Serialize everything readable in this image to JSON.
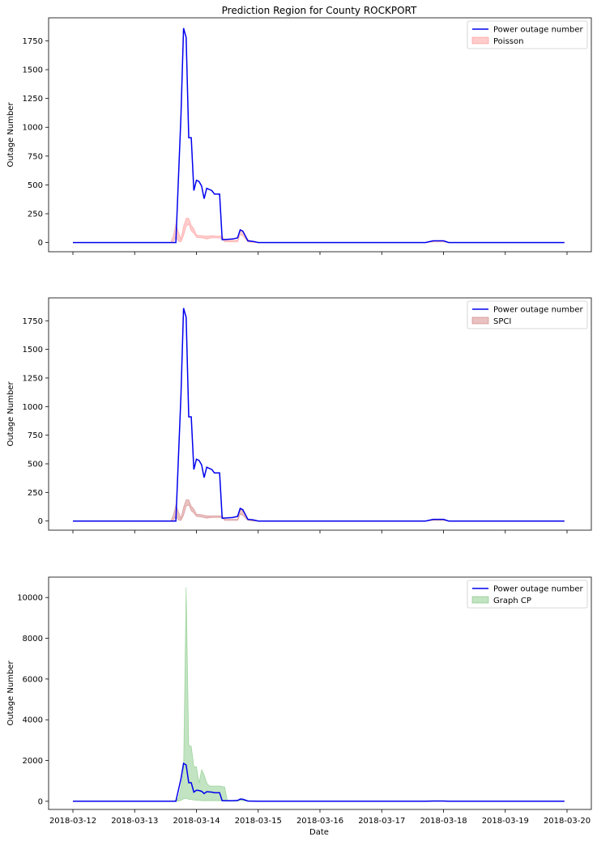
{
  "figure": {
    "title": "Prediction Region for County ROCKPORT",
    "x_axis_label": "Date",
    "colors": {
      "observed": "#0000ee",
      "poisson": "#ff7f7f",
      "spci": "#c86464",
      "graph_cp": "#66bb66"
    }
  },
  "chart_data": [
    {
      "type": "line",
      "title": "Prediction Region for County ROCKPORT",
      "xlabel": "",
      "ylabel": "Outage Number",
      "xlim": [
        "2018-03-12",
        "2018-03-20"
      ],
      "ylim": [
        -80,
        1950
      ],
      "x_ticks": [
        "2018-03-12",
        "2018-03-13",
        "2018-03-14",
        "2018-03-15",
        "2018-03-16",
        "2018-03-17",
        "2018-03-18",
        "2018-03-19",
        "2018-03-20"
      ],
      "show_x_tick_labels": false,
      "y_ticks": [
        0,
        250,
        500,
        750,
        1000,
        1250,
        1500,
        1750
      ],
      "legend": {
        "position": "top-right",
        "entries": [
          "Power outage number",
          "Poisson"
        ]
      },
      "series": [
        {
          "name": "Power outage number",
          "kind": "line",
          "color": "#0000ee",
          "points": [
            [
              "2018-03-12T00:00",
              0
            ],
            [
              "2018-03-13T16:00",
              0
            ],
            [
              "2018-03-13T18:00",
              1100
            ],
            [
              "2018-03-13T19:00",
              1860
            ],
            [
              "2018-03-13T20:00",
              1780
            ],
            [
              "2018-03-13T21:00",
              910
            ],
            [
              "2018-03-13T22:00",
              910
            ],
            [
              "2018-03-13T23:00",
              450
            ],
            [
              "2018-03-14T00:00",
              540
            ],
            [
              "2018-03-14T01:00",
              530
            ],
            [
              "2018-03-14T02:00",
              490
            ],
            [
              "2018-03-14T03:00",
              380
            ],
            [
              "2018-03-14T04:00",
              470
            ],
            [
              "2018-03-14T06:00",
              450
            ],
            [
              "2018-03-14T07:00",
              420
            ],
            [
              "2018-03-14T09:00",
              420
            ],
            [
              "2018-03-14T10:00",
              25
            ],
            [
              "2018-03-14T14:00",
              30
            ],
            [
              "2018-03-14T16:00",
              40
            ],
            [
              "2018-03-14T17:00",
              110
            ],
            [
              "2018-03-14T18:00",
              100
            ],
            [
              "2018-03-14T20:00",
              15
            ],
            [
              "2018-03-14T22:00",
              10
            ],
            [
              "2018-03-15T00:00",
              0
            ],
            [
              "2018-03-17T17:00",
              0
            ],
            [
              "2018-03-17T20:00",
              15
            ],
            [
              "2018-03-18T00:00",
              15
            ],
            [
              "2018-03-18T02:00",
              0
            ],
            [
              "2018-03-19T23:00",
              0
            ]
          ]
        },
        {
          "name": "Poisson",
          "kind": "band",
          "color": "#ff7f7f",
          "points": [
            [
              "2018-03-12T00:00",
              0,
              0
            ],
            [
              "2018-03-13T14:00",
              0,
              0
            ],
            [
              "2018-03-13T15:00",
              5,
              60
            ],
            [
              "2018-03-13T16:00",
              50,
              160
            ],
            [
              "2018-03-13T17:00",
              10,
              90
            ],
            [
              "2018-03-13T18:00",
              5,
              30
            ],
            [
              "2018-03-13T19:00",
              60,
              140
            ],
            [
              "2018-03-13T20:00",
              140,
              210
            ],
            [
              "2018-03-13T21:00",
              160,
              210
            ],
            [
              "2018-03-13T22:00",
              100,
              150
            ],
            [
              "2018-03-13T23:00",
              80,
              120
            ],
            [
              "2018-03-14T00:00",
              45,
              65
            ],
            [
              "2018-03-14T02:00",
              40,
              60
            ],
            [
              "2018-03-14T04:00",
              30,
              55
            ],
            [
              "2018-03-14T06:00",
              40,
              60
            ],
            [
              "2018-03-14T08:00",
              40,
              55
            ],
            [
              "2018-03-14T10:00",
              35,
              55
            ],
            [
              "2018-03-14T11:00",
              5,
              20
            ],
            [
              "2018-03-14T16:00",
              5,
              20
            ],
            [
              "2018-03-14T17:00",
              70,
              115
            ],
            [
              "2018-03-14T18:00",
              60,
              100
            ],
            [
              "2018-03-14T20:00",
              5,
              25
            ],
            [
              "2018-03-14T22:00",
              0,
              5
            ],
            [
              "2018-03-15T00:00",
              0,
              0
            ],
            [
              "2018-03-17T17:00",
              0,
              0
            ],
            [
              "2018-03-17T20:00",
              5,
              15
            ],
            [
              "2018-03-18T00:00",
              5,
              15
            ],
            [
              "2018-03-18T02:00",
              0,
              0
            ],
            [
              "2018-03-19T23:00",
              0,
              0
            ]
          ]
        }
      ]
    },
    {
      "type": "line",
      "title": "",
      "xlabel": "",
      "ylabel": "Outage Number",
      "xlim": [
        "2018-03-12",
        "2018-03-20"
      ],
      "ylim": [
        -80,
        1950
      ],
      "x_ticks": [
        "2018-03-12",
        "2018-03-13",
        "2018-03-14",
        "2018-03-15",
        "2018-03-16",
        "2018-03-17",
        "2018-03-18",
        "2018-03-19",
        "2018-03-20"
      ],
      "show_x_tick_labels": false,
      "y_ticks": [
        0,
        250,
        500,
        750,
        1000,
        1250,
        1500,
        1750
      ],
      "legend": {
        "position": "top-right",
        "entries": [
          "Power outage number",
          "SPCI"
        ]
      },
      "series": [
        {
          "name": "Power outage number",
          "kind": "line",
          "color": "#0000ee",
          "points": [
            [
              "2018-03-12T00:00",
              0
            ],
            [
              "2018-03-13T16:00",
              0
            ],
            [
              "2018-03-13T18:00",
              1100
            ],
            [
              "2018-03-13T19:00",
              1860
            ],
            [
              "2018-03-13T20:00",
              1780
            ],
            [
              "2018-03-13T21:00",
              910
            ],
            [
              "2018-03-13T22:00",
              910
            ],
            [
              "2018-03-13T23:00",
              450
            ],
            [
              "2018-03-14T00:00",
              540
            ],
            [
              "2018-03-14T01:00",
              530
            ],
            [
              "2018-03-14T02:00",
              490
            ],
            [
              "2018-03-14T03:00",
              380
            ],
            [
              "2018-03-14T04:00",
              470
            ],
            [
              "2018-03-14T06:00",
              450
            ],
            [
              "2018-03-14T07:00",
              420
            ],
            [
              "2018-03-14T09:00",
              420
            ],
            [
              "2018-03-14T10:00",
              25
            ],
            [
              "2018-03-14T14:00",
              30
            ],
            [
              "2018-03-14T16:00",
              40
            ],
            [
              "2018-03-14T17:00",
              110
            ],
            [
              "2018-03-14T18:00",
              100
            ],
            [
              "2018-03-14T20:00",
              15
            ],
            [
              "2018-03-14T22:00",
              10
            ],
            [
              "2018-03-15T00:00",
              0
            ],
            [
              "2018-03-17T17:00",
              0
            ],
            [
              "2018-03-17T20:00",
              15
            ],
            [
              "2018-03-18T00:00",
              15
            ],
            [
              "2018-03-18T02:00",
              0
            ],
            [
              "2018-03-19T23:00",
              0
            ]
          ]
        },
        {
          "name": "SPCI",
          "kind": "band",
          "color": "#c86464",
          "points": [
            [
              "2018-03-12T00:00",
              0,
              0
            ],
            [
              "2018-03-13T14:00",
              0,
              0
            ],
            [
              "2018-03-13T15:00",
              5,
              50
            ],
            [
              "2018-03-13T16:00",
              40,
              140
            ],
            [
              "2018-03-13T17:00",
              10,
              80
            ],
            [
              "2018-03-13T18:00",
              5,
              25
            ],
            [
              "2018-03-13T19:00",
              50,
              120
            ],
            [
              "2018-03-13T20:00",
              130,
              185
            ],
            [
              "2018-03-13T21:00",
              140,
              185
            ],
            [
              "2018-03-13T22:00",
              90,
              130
            ],
            [
              "2018-03-13T23:00",
              70,
              105
            ],
            [
              "2018-03-14T00:00",
              40,
              60
            ],
            [
              "2018-03-14T02:00",
              35,
              55
            ],
            [
              "2018-03-14T04:00",
              25,
              45
            ],
            [
              "2018-03-14T06:00",
              30,
              45
            ],
            [
              "2018-03-14T10:00",
              30,
              45
            ],
            [
              "2018-03-14T11:00",
              5,
              15
            ],
            [
              "2018-03-14T16:00",
              5,
              15
            ],
            [
              "2018-03-14T17:00",
              60,
              105
            ],
            [
              "2018-03-14T18:00",
              50,
              90
            ],
            [
              "2018-03-14T20:00",
              5,
              20
            ],
            [
              "2018-03-14T22:00",
              0,
              5
            ],
            [
              "2018-03-15T00:00",
              0,
              0
            ],
            [
              "2018-03-17T17:00",
              0,
              0
            ],
            [
              "2018-03-17T20:00",
              5,
              12
            ],
            [
              "2018-03-18T00:00",
              5,
              12
            ],
            [
              "2018-03-18T02:00",
              0,
              0
            ],
            [
              "2018-03-19T23:00",
              0,
              0
            ]
          ]
        }
      ]
    },
    {
      "type": "line",
      "title": "",
      "xlabel": "Date",
      "ylabel": "Outage Number",
      "xlim": [
        "2018-03-12",
        "2018-03-20"
      ],
      "ylim": [
        -400,
        11000
      ],
      "x_ticks": [
        "2018-03-12",
        "2018-03-13",
        "2018-03-14",
        "2018-03-15",
        "2018-03-16",
        "2018-03-17",
        "2018-03-18",
        "2018-03-19",
        "2018-03-20"
      ],
      "show_x_tick_labels": true,
      "y_ticks": [
        0,
        2000,
        4000,
        6000,
        8000,
        10000
      ],
      "legend": {
        "position": "top-right",
        "entries": [
          "Power outage number",
          "Graph CP"
        ]
      },
      "series": [
        {
          "name": "Power outage number",
          "kind": "line",
          "color": "#0000ee",
          "points": [
            [
              "2018-03-12T00:00",
              0
            ],
            [
              "2018-03-13T16:00",
              0
            ],
            [
              "2018-03-13T18:00",
              1100
            ],
            [
              "2018-03-13T19:00",
              1860
            ],
            [
              "2018-03-13T20:00",
              1780
            ],
            [
              "2018-03-13T21:00",
              910
            ],
            [
              "2018-03-13T22:00",
              910
            ],
            [
              "2018-03-13T23:00",
              450
            ],
            [
              "2018-03-14T00:00",
              540
            ],
            [
              "2018-03-14T01:00",
              530
            ],
            [
              "2018-03-14T02:00",
              490
            ],
            [
              "2018-03-14T03:00",
              380
            ],
            [
              "2018-03-14T04:00",
              470
            ],
            [
              "2018-03-14T06:00",
              450
            ],
            [
              "2018-03-14T07:00",
              420
            ],
            [
              "2018-03-14T09:00",
              420
            ],
            [
              "2018-03-14T10:00",
              25
            ],
            [
              "2018-03-14T14:00",
              30
            ],
            [
              "2018-03-14T16:00",
              40
            ],
            [
              "2018-03-14T17:00",
              110
            ],
            [
              "2018-03-14T18:00",
              100
            ],
            [
              "2018-03-14T20:00",
              15
            ],
            [
              "2018-03-14T22:00",
              10
            ],
            [
              "2018-03-15T00:00",
              0
            ],
            [
              "2018-03-17T17:00",
              0
            ],
            [
              "2018-03-17T20:00",
              15
            ],
            [
              "2018-03-18T00:00",
              15
            ],
            [
              "2018-03-18T02:00",
              0
            ],
            [
              "2018-03-19T23:00",
              0
            ]
          ]
        },
        {
          "name": "Graph CP",
          "kind": "band",
          "color": "#66bb66",
          "points": [
            [
              "2018-03-12T00:00",
              0,
              0
            ],
            [
              "2018-03-13T15:00",
              0,
              0
            ],
            [
              "2018-03-13T16:00",
              0,
              50
            ],
            [
              "2018-03-13T17:00",
              10,
              150
            ],
            [
              "2018-03-13T18:00",
              50,
              700
            ],
            [
              "2018-03-13T19:00",
              120,
              1500
            ],
            [
              "2018-03-13T20:00",
              150,
              10500
            ],
            [
              "2018-03-13T21:00",
              100,
              2750
            ],
            [
              "2018-03-13T22:00",
              80,
              2700
            ],
            [
              "2018-03-13T23:00",
              60,
              1700
            ],
            [
              "2018-03-14T00:00",
              50,
              1700
            ],
            [
              "2018-03-14T01:00",
              40,
              900
            ],
            [
              "2018-03-14T02:00",
              30,
              1550
            ],
            [
              "2018-03-14T03:00",
              30,
              1300
            ],
            [
              "2018-03-14T04:00",
              30,
              900
            ],
            [
              "2018-03-14T05:00",
              30,
              750
            ],
            [
              "2018-03-14T09:00",
              30,
              750
            ],
            [
              "2018-03-14T11:00",
              20,
              700
            ],
            [
              "2018-03-14T12:00",
              0,
              40
            ],
            [
              "2018-03-14T16:00",
              0,
              40
            ],
            [
              "2018-03-14T17:00",
              40,
              140
            ],
            [
              "2018-03-14T18:00",
              30,
              120
            ],
            [
              "2018-03-14T20:00",
              0,
              30
            ],
            [
              "2018-03-15T00:00",
              0,
              0
            ],
            [
              "2018-03-17T17:00",
              0,
              0
            ],
            [
              "2018-03-17T20:00",
              5,
              25
            ],
            [
              "2018-03-18T00:00",
              5,
              25
            ],
            [
              "2018-03-18T02:00",
              0,
              0
            ],
            [
              "2018-03-19T23:00",
              0,
              0
            ]
          ]
        }
      ]
    }
  ]
}
